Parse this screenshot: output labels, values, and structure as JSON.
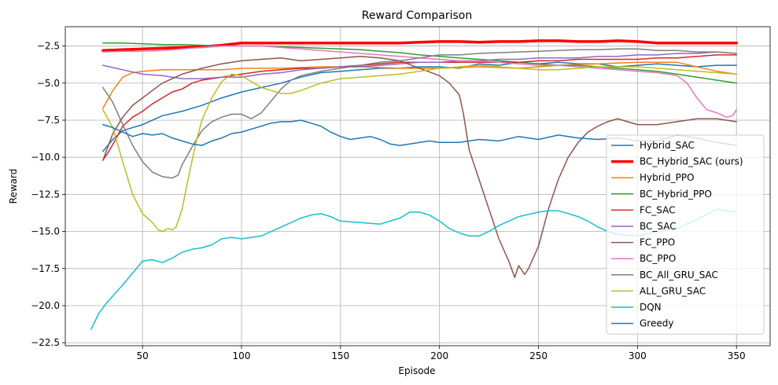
{
  "chart_data": {
    "type": "line",
    "title": "Reward Comparison",
    "xlabel": "Episode",
    "ylabel": "Reward",
    "xlim": [
      11,
      367
    ],
    "ylim": [
      -22.7,
      -1.2
    ],
    "xticks": [
      50,
      100,
      150,
      200,
      250,
      300,
      350
    ],
    "xtick_labels": [
      "50",
      "100",
      "150",
      "200",
      "250",
      "300",
      "350"
    ],
    "yticks": [
      -22.5,
      -20.0,
      -17.5,
      -15.0,
      -12.5,
      -10.0,
      -7.5,
      -5.0,
      -2.5
    ],
    "ytick_labels": [
      "−22.5",
      "−20.0",
      "−17.5",
      "−15.0",
      "−12.5",
      "−10.0",
      "−7.5",
      "−5.0",
      "−2.5"
    ],
    "grid": true,
    "legend_position": "lower-right",
    "series": [
      {
        "name": "Hybrid_SAC",
        "color": "#1f77b4",
        "width": 1.5,
        "x": [
          30,
          35,
          40,
          50,
          60,
          70,
          80,
          90,
          100,
          110,
          120,
          130,
          140,
          150,
          160,
          170,
          180,
          190,
          200,
          210,
          220,
          230,
          240,
          250,
          260,
          270,
          280,
          290,
          300,
          310,
          320,
          330,
          340,
          350
        ],
        "y": [
          -9.6,
          -8.8,
          -8.2,
          -7.8,
          -7.2,
          -6.9,
          -6.5,
          -6.0,
          -5.6,
          -5.3,
          -5.0,
          -4.6,
          -4.3,
          -4.2,
          -4.1,
          -4.0,
          -4.0,
          -3.9,
          -3.9,
          -4.0,
          -3.7,
          -3.8,
          -3.6,
          -3.7,
          -3.6,
          -3.7,
          -3.7,
          -3.9,
          -3.8,
          -3.7,
          -3.8,
          -3.9,
          -3.8,
          -3.8
        ]
      },
      {
        "name": "BC_Hybrid_SAC (ours)",
        "color": "#ff0000",
        "width": 3.5,
        "x": [
          30,
          40,
          50,
          60,
          70,
          80,
          90,
          100,
          110,
          120,
          130,
          140,
          150,
          160,
          170,
          180,
          190,
          200,
          210,
          220,
          230,
          240,
          250,
          260,
          270,
          280,
          290,
          300,
          310,
          320,
          330,
          340,
          350
        ],
        "y": [
          -2.8,
          -2.75,
          -2.7,
          -2.65,
          -2.6,
          -2.55,
          -2.45,
          -2.3,
          -2.3,
          -2.3,
          -2.3,
          -2.3,
          -2.3,
          -2.3,
          -2.3,
          -2.3,
          -2.25,
          -2.2,
          -2.2,
          -2.25,
          -2.2,
          -2.2,
          -2.15,
          -2.15,
          -2.2,
          -2.2,
          -2.15,
          -2.2,
          -2.3,
          -2.3,
          -2.3,
          -2.3,
          -2.3
        ]
      },
      {
        "name": "Hybrid_PPO",
        "color": "#ff7f0e",
        "width": 1.5,
        "x": [
          30,
          35,
          40,
          45,
          50,
          60,
          70,
          80,
          90,
          100,
          120,
          140,
          160,
          180,
          200,
          220,
          240,
          260,
          280,
          300,
          320,
          340,
          350
        ],
        "y": [
          -6.7,
          -5.5,
          -4.6,
          -4.3,
          -4.2,
          -4.1,
          -4.1,
          -4.1,
          -4.1,
          -4.0,
          -4.0,
          -3.9,
          -3.9,
          -4.0,
          -4.0,
          -3.9,
          -4.0,
          -3.8,
          -3.7,
          -3.6,
          -3.6,
          -4.2,
          -4.4
        ]
      },
      {
        "name": "BC_Hybrid_PPO",
        "color": "#2ca02c",
        "width": 1.5,
        "x": [
          30,
          40,
          50,
          60,
          70,
          80,
          90,
          100,
          110,
          120,
          130,
          140,
          150,
          160,
          170,
          180,
          190,
          200,
          210,
          220,
          230,
          240,
          250,
          260,
          270,
          280,
          290,
          300,
          310,
          320,
          330,
          340,
          350
        ],
        "y": [
          -2.3,
          -2.3,
          -2.35,
          -2.4,
          -2.4,
          -2.45,
          -2.5,
          -2.5,
          -2.5,
          -2.55,
          -2.6,
          -2.65,
          -2.7,
          -2.75,
          -2.85,
          -2.95,
          -3.1,
          -3.2,
          -3.3,
          -3.4,
          -3.5,
          -3.6,
          -3.7,
          -3.8,
          -3.8,
          -3.9,
          -4.0,
          -4.1,
          -4.2,
          -4.4,
          -4.6,
          -4.8,
          -5.0
        ]
      },
      {
        "name": "FC_SAC",
        "color": "#d62728",
        "width": 1.5,
        "x": [
          30,
          33,
          36,
          40,
          45,
          50,
          55,
          60,
          65,
          70,
          75,
          80,
          85,
          90,
          95,
          100,
          110,
          120,
          130,
          140,
          150,
          160,
          170,
          180,
          190,
          200,
          210,
          220,
          230,
          240,
          250,
          260,
          270,
          280,
          290,
          300,
          310,
          320,
          330,
          340,
          350
        ],
        "y": [
          -10.2,
          -9.6,
          -8.9,
          -7.9,
          -7.3,
          -6.9,
          -6.4,
          -6.0,
          -5.6,
          -5.4,
          -5.0,
          -4.8,
          -4.7,
          -4.6,
          -4.5,
          -4.4,
          -4.2,
          -4.1,
          -4.0,
          -4.0,
          -3.9,
          -3.8,
          -3.7,
          -3.6,
          -3.6,
          -3.6,
          -3.6,
          -3.6,
          -3.6,
          -3.6,
          -3.5,
          -3.5,
          -3.4,
          -3.4,
          -3.4,
          -3.4,
          -3.3,
          -3.3,
          -3.2,
          -3.1,
          -3.1
        ]
      },
      {
        "name": "BC_SAC",
        "color": "#9467bd",
        "width": 1.5,
        "x": [
          30,
          40,
          50,
          60,
          70,
          80,
          90,
          100,
          110,
          120,
          130,
          140,
          150,
          160,
          170,
          180,
          190,
          200,
          210,
          220,
          230,
          240,
          250,
          260,
          270,
          280,
          290,
          300,
          310,
          320,
          330,
          340,
          350
        ],
        "y": [
          -3.8,
          -4.1,
          -4.4,
          -4.5,
          -4.7,
          -4.7,
          -4.6,
          -4.6,
          -4.4,
          -4.3,
          -4.1,
          -4.0,
          -3.9,
          -3.9,
          -3.8,
          -3.7,
          -3.6,
          -3.6,
          -3.5,
          -3.5,
          -3.4,
          -3.4,
          -3.3,
          -3.3,
          -3.3,
          -3.2,
          -3.2,
          -3.1,
          -3.1,
          -3.0,
          -3.0,
          -2.9,
          -3.0
        ]
      },
      {
        "name": "FC_PPO",
        "color": "#8c564b",
        "width": 1.5,
        "x": [
          30,
          35,
          40,
          45,
          50,
          55,
          60,
          70,
          80,
          90,
          100,
          110,
          120,
          130,
          140,
          150,
          160,
          170,
          180,
          190,
          200,
          205,
          210,
          212,
          215,
          220,
          225,
          230,
          235,
          238,
          240,
          243,
          245,
          250,
          255,
          260,
          265,
          270,
          275,
          280,
          285,
          290,
          300,
          310,
          320,
          330,
          340,
          350
        ],
        "y": [
          -10.2,
          -8.4,
          -7.3,
          -6.5,
          -6.0,
          -5.5,
          -5.0,
          -4.4,
          -4.0,
          -3.7,
          -3.5,
          -3.4,
          -3.3,
          -3.5,
          -3.4,
          -3.3,
          -3.2,
          -3.3,
          -3.5,
          -4.0,
          -4.5,
          -5.0,
          -5.8,
          -7.0,
          -9.5,
          -11.5,
          -13.5,
          -15.5,
          -17.0,
          -18.1,
          -17.3,
          -17.9,
          -17.5,
          -16.0,
          -13.5,
          -11.5,
          -10.0,
          -9.0,
          -8.3,
          -7.9,
          -7.6,
          -7.4,
          -7.8,
          -7.8,
          -7.6,
          -7.4,
          -7.4,
          -7.6
        ]
      },
      {
        "name": "BC_PPO",
        "color": "#e377c2",
        "width": 1.5,
        "x": [
          30,
          40,
          50,
          60,
          70,
          80,
          90,
          100,
          110,
          120,
          130,
          140,
          150,
          160,
          170,
          180,
          190,
          200,
          210,
          220,
          230,
          240,
          250,
          260,
          270,
          280,
          290,
          300,
          310,
          320,
          325,
          330,
          335,
          340,
          345,
          348,
          350
        ],
        "y": [
          -2.9,
          -2.85,
          -2.85,
          -2.8,
          -2.7,
          -2.6,
          -2.5,
          -2.5,
          -2.5,
          -2.6,
          -2.7,
          -2.8,
          -2.9,
          -3.0,
          -3.1,
          -3.2,
          -3.3,
          -3.4,
          -3.5,
          -3.5,
          -3.6,
          -3.7,
          -3.8,
          -3.8,
          -3.9,
          -4.0,
          -4.1,
          -4.2,
          -4.3,
          -4.5,
          -5.0,
          -6.0,
          -6.8,
          -7.0,
          -7.3,
          -7.2,
          -6.8
        ]
      },
      {
        "name": "BC_All_GRU_SAC",
        "color": "#7f7f7f",
        "width": 1.5,
        "x": [
          30,
          35,
          40,
          45,
          50,
          55,
          60,
          65,
          68,
          70,
          75,
          80,
          85,
          90,
          95,
          100,
          105,
          110,
          115,
          120,
          125,
          130,
          140,
          150,
          160,
          170,
          180,
          190,
          200,
          210,
          220,
          230,
          240,
          250,
          260,
          270,
          280,
          290,
          300,
          310,
          320,
          330,
          340,
          350
        ],
        "y": [
          -5.3,
          -6.3,
          -7.8,
          -9.2,
          -10.3,
          -11.0,
          -11.3,
          -11.4,
          -11.2,
          -10.5,
          -9.3,
          -8.2,
          -7.6,
          -7.3,
          -7.1,
          -7.1,
          -7.4,
          -7.0,
          -6.2,
          -5.4,
          -4.8,
          -4.5,
          -4.2,
          -4.0,
          -3.8,
          -3.6,
          -3.5,
          -3.3,
          -3.1,
          -3.1,
          -3.0,
          -2.95,
          -2.9,
          -2.85,
          -2.8,
          -2.75,
          -2.75,
          -2.7,
          -2.7,
          -2.8,
          -2.8,
          -2.9,
          -2.9,
          -3.0
        ]
      },
      {
        "name": "ALL_GRU_SAC",
        "color": "#bcbd22",
        "width": 1.5,
        "x": [
          30,
          35,
          40,
          45,
          50,
          55,
          58,
          60,
          63,
          65,
          67,
          70,
          73,
          77,
          80,
          85,
          90,
          95,
          100,
          105,
          110,
          115,
          120,
          125,
          130,
          140,
          150,
          160,
          170,
          180,
          190,
          200,
          210,
          220,
          230,
          240,
          250,
          260,
          270,
          280,
          290,
          300,
          310,
          320,
          330,
          340,
          350
        ],
        "y": [
          -6.8,
          -8.0,
          -10.3,
          -12.5,
          -13.8,
          -14.4,
          -14.9,
          -15.0,
          -14.8,
          -14.9,
          -14.7,
          -13.5,
          -11.5,
          -9.0,
          -7.5,
          -6.0,
          -4.9,
          -4.4,
          -4.5,
          -4.9,
          -5.3,
          -5.5,
          -5.7,
          -5.7,
          -5.5,
          -5.0,
          -4.7,
          -4.6,
          -4.5,
          -4.4,
          -4.2,
          -4.0,
          -3.9,
          -3.8,
          -3.9,
          -4.0,
          -4.1,
          -4.1,
          -4.0,
          -3.9,
          -3.9,
          -3.9,
          -4.0,
          -4.1,
          -4.2,
          -4.3,
          -4.4
        ]
      },
      {
        "name": "DQN",
        "color": "#17becf",
        "width": 1.5,
        "x": [
          24,
          28,
          32,
          36,
          40,
          45,
          50,
          55,
          60,
          65,
          70,
          75,
          80,
          85,
          90,
          95,
          100,
          105,
          110,
          115,
          120,
          125,
          130,
          135,
          140,
          145,
          150,
          160,
          170,
          180,
          185,
          190,
          195,
          200,
          205,
          210,
          215,
          220,
          225,
          230,
          235,
          240,
          250,
          255,
          260,
          265,
          270,
          275,
          280,
          285,
          290,
          300,
          310,
          320,
          330,
          340,
          350
        ],
        "y": [
          -21.6,
          -20.5,
          -19.8,
          -19.2,
          -18.6,
          -17.8,
          -17.0,
          -16.9,
          -17.1,
          -16.8,
          -16.4,
          -16.2,
          -16.1,
          -15.9,
          -15.5,
          -15.4,
          -15.5,
          -15.4,
          -15.3,
          -15.0,
          -14.7,
          -14.4,
          -14.1,
          -13.9,
          -13.8,
          -14.0,
          -14.3,
          -14.4,
          -14.5,
          -14.1,
          -13.7,
          -13.7,
          -13.9,
          -14.3,
          -14.8,
          -15.1,
          -15.3,
          -15.3,
          -15.0,
          -14.6,
          -14.3,
          -14.0,
          -13.7,
          -13.6,
          -13.6,
          -13.8,
          -14.0,
          -14.3,
          -14.7,
          -15.0,
          -15.2,
          -15.3,
          -15.0,
          -14.8,
          -14.2,
          -13.5,
          -13.7
        ]
      },
      {
        "name": "Greedy",
        "color": "#1f77b4",
        "width": 1.5,
        "x": [
          30,
          35,
          40,
          45,
          50,
          55,
          60,
          65,
          70,
          75,
          80,
          85,
          90,
          95,
          100,
          105,
          110,
          115,
          120,
          125,
          130,
          135,
          140,
          145,
          150,
          155,
          160,
          165,
          170,
          175,
          180,
          185,
          190,
          195,
          200,
          210,
          220,
          230,
          240,
          250,
          260,
          270,
          280,
          290,
          300,
          310,
          320,
          330,
          340,
          350
        ],
        "y": [
          -7.8,
          -8.0,
          -8.3,
          -8.6,
          -8.4,
          -8.5,
          -8.4,
          -8.7,
          -8.9,
          -9.1,
          -9.2,
          -8.9,
          -8.7,
          -8.4,
          -8.3,
          -8.1,
          -7.9,
          -7.7,
          -7.6,
          -7.6,
          -7.5,
          -7.7,
          -7.9,
          -8.3,
          -8.6,
          -8.8,
          -8.7,
          -8.6,
          -8.8,
          -9.1,
          -9.2,
          -9.1,
          -9.0,
          -8.9,
          -9.0,
          -9.0,
          -8.8,
          -8.9,
          -8.6,
          -8.8,
          -8.5,
          -8.7,
          -8.8,
          -8.7,
          -8.9,
          -8.9,
          -8.5,
          -8.7,
          -9.0,
          -9.2
        ]
      }
    ]
  }
}
